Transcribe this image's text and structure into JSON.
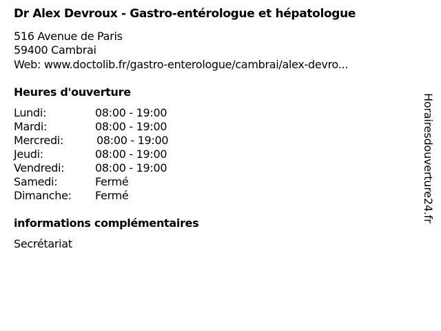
{
  "title": "Dr Alex Devroux - Gastro-entérologue et hépatologue",
  "address": {
    "street": "516 Avenue de Paris",
    "city": "59400 Cambrai",
    "web": "Web: www.doctolib.fr/gastro-enterologue/cambrai/alex-devro..."
  },
  "hours": {
    "heading": "Heures d'ouverture",
    "rows": [
      {
        "day": "Lundi:",
        "time": "08:00 - 19:00"
      },
      {
        "day": "Mardi:",
        "time": "08:00 - 19:00"
      },
      {
        "day": "Mercredi:",
        "time": "08:00 - 19:00"
      },
      {
        "day": "Jeudi:",
        "time": "08:00 - 19:00"
      },
      {
        "day": "Vendredi:",
        "time": "08:00 - 19:00"
      },
      {
        "day": "Samedi:",
        "time": "Fermé"
      },
      {
        "day": "Dimanche:",
        "time": "Fermé"
      }
    ]
  },
  "info": {
    "heading": "informations complémentaires",
    "text": "Secrétariat"
  },
  "watermark": "Horairesdouverture24.fr"
}
